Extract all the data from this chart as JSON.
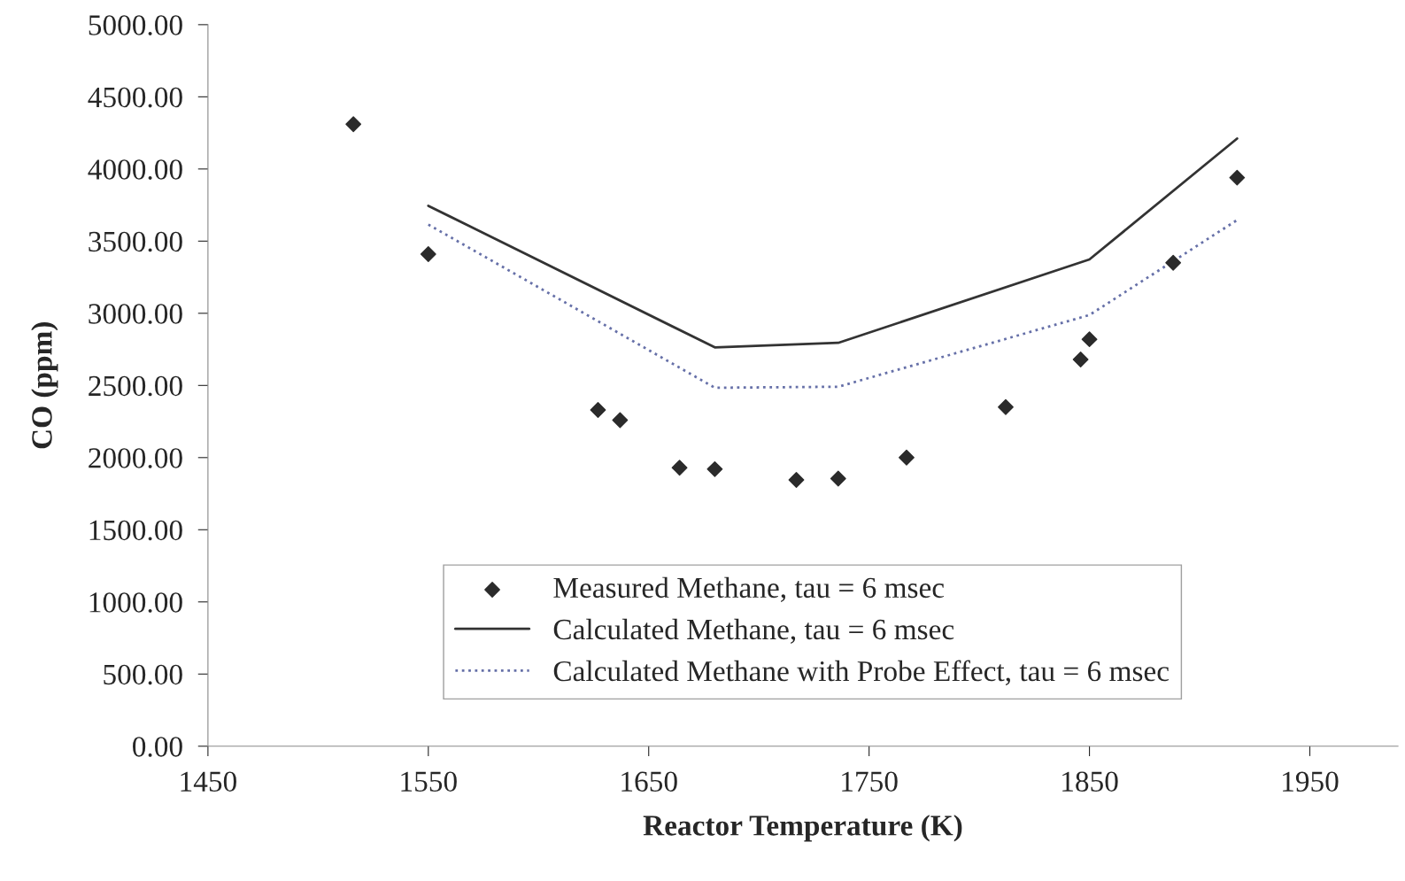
{
  "chart_data": {
    "type": "scatter",
    "xlabel": "Reactor Temperature (K)",
    "ylabel": "CO (ppm)",
    "series": [
      {
        "name": "Measured Methane, tau = 6 msec",
        "marker": "diamond",
        "color": "#2b2b2b",
        "x": [
          1516,
          1550,
          1627,
          1637,
          1664,
          1680,
          1717,
          1736,
          1767,
          1812,
          1846,
          1850,
          1888,
          1917
        ],
        "values": [
          4310,
          3410,
          2330,
          2260,
          1930,
          1920,
          1845,
          1855,
          2000,
          2350,
          2680,
          2820,
          3350,
          3940
        ]
      },
      {
        "name": "Calculated Methane, tau = 6 msec",
        "type": "line",
        "line_style": "solid",
        "color": "#333333",
        "x": [
          1550,
          1680,
          1736,
          1850,
          1917
        ],
        "values": [
          3745,
          2764,
          2795,
          3373,
          4211
        ]
      },
      {
        "name": "Calculated Methane with Probe Effect, tau = 6 msec",
        "type": "line",
        "line_style": "dotted",
        "color": "#6670a8",
        "x": [
          1550,
          1680,
          1736,
          1850,
          1917
        ],
        "values": [
          3615,
          2484,
          2491,
          2988,
          3646
        ]
      }
    ],
    "xlim": [
      1450,
      1990
    ],
    "xticks": [
      1450,
      1550,
      1650,
      1750,
      1850,
      1950
    ],
    "ylim": [
      0,
      5000
    ],
    "yticks": [
      {
        "value": 0,
        "label": "0.00"
      },
      {
        "value": 500,
        "label": "500.00"
      },
      {
        "value": 1000,
        "label": "1000.00"
      },
      {
        "value": 1500,
        "label": "1500.00"
      },
      {
        "value": 2000,
        "label": "2000.00"
      },
      {
        "value": 2500,
        "label": "2500.00"
      },
      {
        "value": 3000,
        "label": "3000.00"
      },
      {
        "value": 3500,
        "label": "3500.00"
      },
      {
        "value": 4000,
        "label": "4000.00"
      },
      {
        "value": 4500,
        "label": "4500.00"
      },
      {
        "value": 5000,
        "label": "5000.00"
      }
    ],
    "grid": false,
    "legend": "bottom"
  }
}
